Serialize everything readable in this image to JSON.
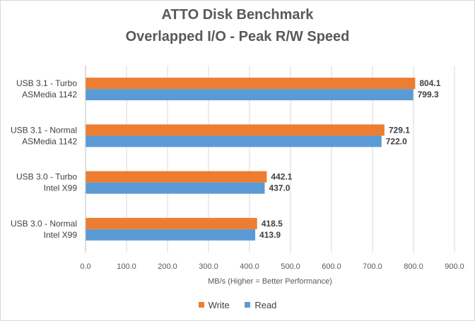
{
  "chart_data": {
    "type": "bar",
    "orientation": "horizontal",
    "title": "ATTO Disk Benchmark",
    "subtitle": "Overlapped I/O - Peak R/W Speed",
    "xlabel": "MB/s (Higher = Better Performance)",
    "ylabel": "",
    "xlim": [
      0,
      900
    ],
    "xticks": [
      "0.0",
      "100.0",
      "200.0",
      "300.0",
      "400.0",
      "500.0",
      "600.0",
      "700.0",
      "800.0",
      "900.0"
    ],
    "categories": [
      [
        "USB 3.1 - Turbo",
        "ASMedia 1142"
      ],
      [
        "USB 3.1 - Normal",
        "ASMedia 1142"
      ],
      [
        "USB 3.0 - Turbo",
        "Intel X99"
      ],
      [
        "USB 3.0 - Normal",
        "Intel X99"
      ]
    ],
    "series": [
      {
        "name": "Write",
        "color": "#ed7d31",
        "values": [
          804.1,
          729.1,
          442.1,
          418.5
        ],
        "labels": [
          "804.1",
          "729.1",
          "442.1",
          "418.5"
        ]
      },
      {
        "name": "Read",
        "color": "#5b9bd5",
        "values": [
          799.3,
          722.0,
          437.0,
          413.9
        ],
        "labels": [
          "799.3",
          "722.0",
          "437.0",
          "413.9"
        ]
      }
    ],
    "grid": true,
    "legend_position": "bottom"
  }
}
